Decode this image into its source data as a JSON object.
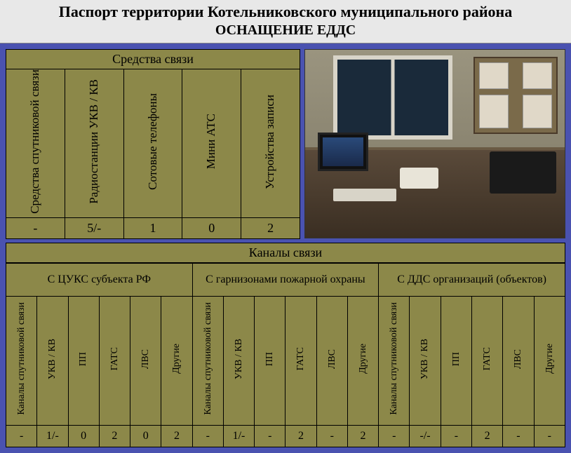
{
  "title": "Паспорт территории Котельниковского муниципального района",
  "subtitle": "ОСНАЩЕНИЕ ЕДДС",
  "means": {
    "header": "Средства связи",
    "cols": [
      "Средства спутниковой связи",
      "Радиостанции УКВ / КВ",
      "Сотовые телефоны",
      "Мини АТС",
      "Устройства записи"
    ],
    "values": [
      "-",
      "5/-",
      "1",
      "0",
      "2"
    ]
  },
  "channels": {
    "header": "Каналы связи",
    "groups": [
      "С ЦУКС субъекта РФ",
      "С гарнизонами пожарной охраны",
      "С ДДС организаций (объектов)"
    ],
    "subcols": [
      "Каналы спутниковой связи",
      "УКВ / КВ",
      "ПП",
      "ГАТС",
      "ЛВС",
      "Другие",
      "Каналы спутниковой связи",
      "УКВ / КВ",
      "ПП",
      "ГАТС",
      "ЛВС",
      "Другие",
      "Каналы спутниковой связи",
      "УКВ / КВ",
      "ПП",
      "ГАТС",
      "ЛВС",
      "Другие"
    ],
    "values": [
      "-",
      "1/-",
      "0",
      "2",
      "0",
      "2",
      "-",
      "1/-",
      "-",
      "2",
      "-",
      "2",
      "-",
      "-/-",
      "-",
      "2",
      "-",
      "-"
    ]
  },
  "colors": {
    "frame": "#4a52b0",
    "cell": "#8c8849",
    "titlebg": "#e8e8e8"
  }
}
